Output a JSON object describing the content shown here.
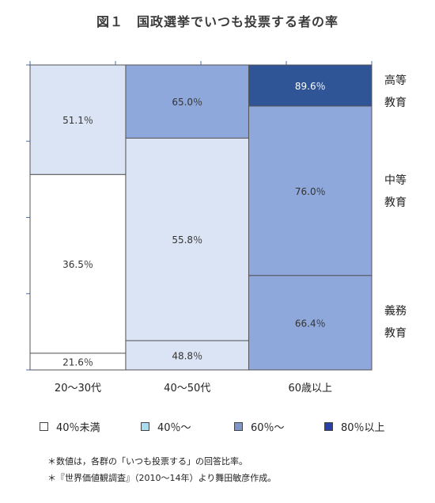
{
  "title": "図１　国政選挙でいつも投票する者の率",
  "chart_data": {
    "type": "mosaic",
    "title": "図１　国政選挙でいつも投票する者の率",
    "columns": [
      "20〜30代",
      "40〜50代",
      "60歳以上"
    ],
    "rows": [
      "高等教育",
      "中等教育",
      "義務教育"
    ],
    "cells": [
      [
        {
          "education": "高等教育",
          "value": 51.1,
          "label": "51.1％"
        },
        {
          "education": "中等教育",
          "value": 36.5,
          "label": "36.5％"
        },
        {
          "education": "義務教育",
          "value": 21.6,
          "label": "21.6％"
        }
      ],
      [
        {
          "education": "高等教育",
          "value": 65.0,
          "label": "65.0％"
        },
        {
          "education": "中等教育",
          "value": 55.8,
          "label": "55.8％"
        },
        {
          "education": "義務教育",
          "value": 48.8,
          "label": "48.8％"
        }
      ],
      [
        {
          "education": "高等教育",
          "value": 89.6,
          "label": "89.6％"
        },
        {
          "education": "中等教育",
          "value": 76.0,
          "label": "76.0％"
        },
        {
          "education": "義務教育",
          "value": 66.4,
          "label": "66.4％"
        }
      ]
    ],
    "proportions": [
      [
        0.46,
        0.75,
        0.07
      ],
      [
        0.3,
        0.83,
        0.12
      ],
      [
        0.17,
        0.7,
        0.39
      ]
    ],
    "column_widths": [
      0.28,
      0.36,
      0.36
    ],
    "row_labels": [
      {
        "line1": "高等",
        "line2": "教育"
      },
      {
        "line1": "中等",
        "line2": "教育"
      },
      {
        "line1": "義務",
        "line2": "教育"
      }
    ],
    "legend": [
      {
        "label": "40％未満",
        "color": "#ffffff"
      },
      {
        "label": "40％〜",
        "color": "#dbe4f4"
      },
      {
        "label": "60％〜",
        "color": "#8ea8dc"
      },
      {
        "label": "80％以上",
        "color": "#2f5597"
      }
    ],
    "legend_markers": [
      {
        "label": "40％未満",
        "color": "#ffffff"
      },
      {
        "label": "40％〜",
        "color": "#a8dcef"
      },
      {
        "label": "60％〜",
        "color": "#7f97c8"
      },
      {
        "label": "80％以上",
        "color": "#2b3fa8"
      }
    ]
  },
  "notes": [
    "＊数値は，各群の「いつも投票する」の回答比率。",
    "＊『世界価値観調査』（2010〜14年）より舞田敏彦作成。"
  ]
}
